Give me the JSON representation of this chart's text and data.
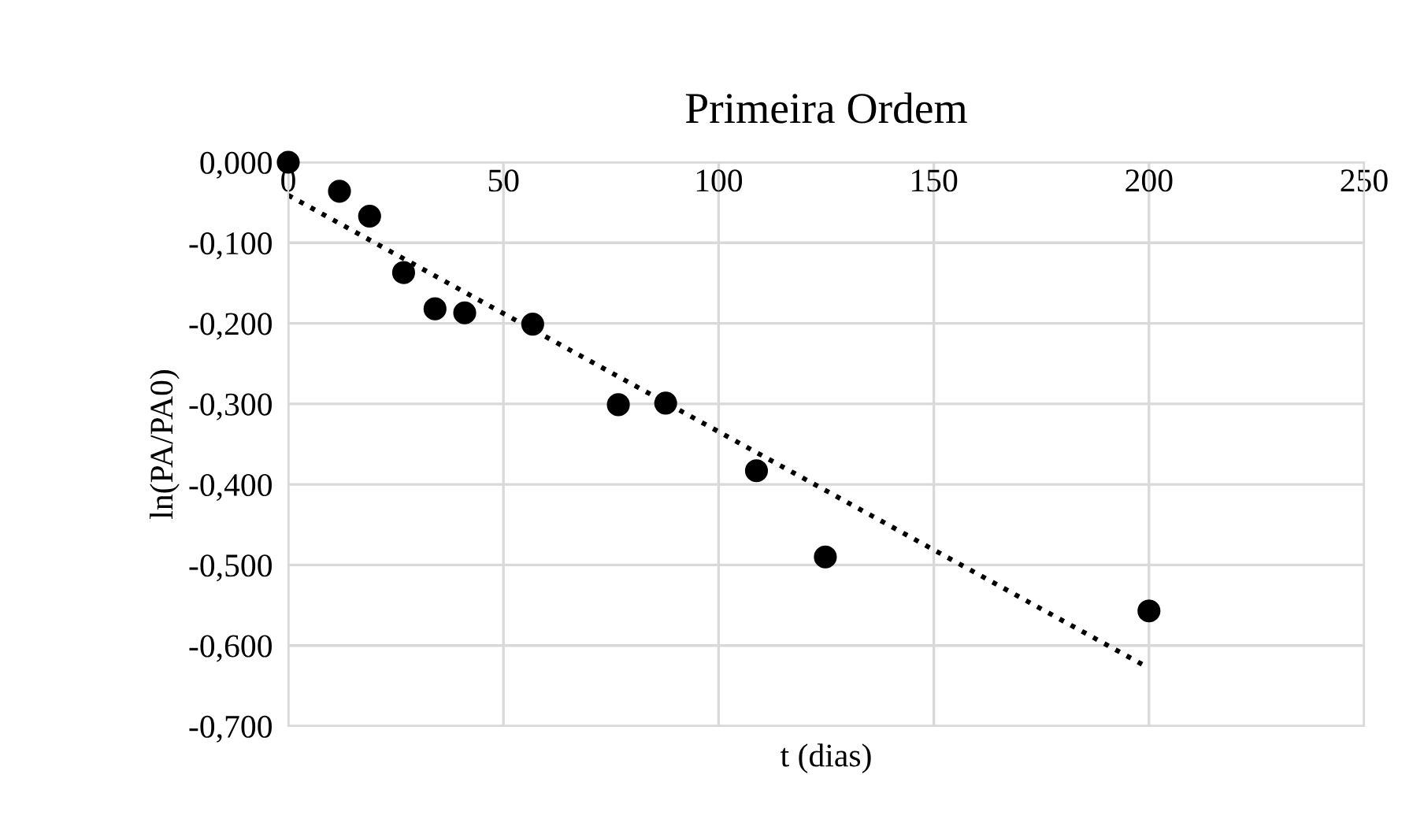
{
  "chart_data": {
    "type": "scatter",
    "title": "Primeira Ordem",
    "xlabel": "t (dias)",
    "ylabel": "ln(PA/PA0)",
    "series": [
      {
        "color": "#000000",
        "marker": "circle",
        "x": [
          0,
          11.9,
          18.9,
          26.8,
          34.1,
          41,
          56.8,
          76.7,
          87.7,
          108.8,
          124.8,
          200
        ],
        "values": [
          0,
          -0.036,
          -0.067,
          -0.137,
          -0.182,
          -0.187,
          -0.201,
          -0.301,
          -0.299,
          -0.383,
          -0.49,
          -0.557
        ]
      },
      {
        "type": "line",
        "color": "#000000",
        "line_style": "dotted",
        "marker": "none",
        "x": [
          0,
          200
        ],
        "values": [
          -0.041,
          -0.628
        ]
      }
    ],
    "xlim": [
      0,
      250
    ],
    "xticks": [
      0,
      50,
      100,
      150,
      200,
      250
    ],
    "ylim": [
      -0.7,
      0
    ],
    "yticks": [
      {
        "value": 0,
        "label": "0,000"
      },
      {
        "value": -0.1,
        "label": "-0,100"
      },
      {
        "value": -0.2,
        "label": "-0,200"
      },
      {
        "value": -0.3,
        "label": "-0,300"
      },
      {
        "value": -0.4,
        "label": "-0,400"
      },
      {
        "value": -0.5,
        "label": "-0,500"
      },
      {
        "value": -0.6,
        "label": "-0,600"
      },
      {
        "value": -0.7,
        "label": "-0,700"
      }
    ],
    "grid": true
  }
}
